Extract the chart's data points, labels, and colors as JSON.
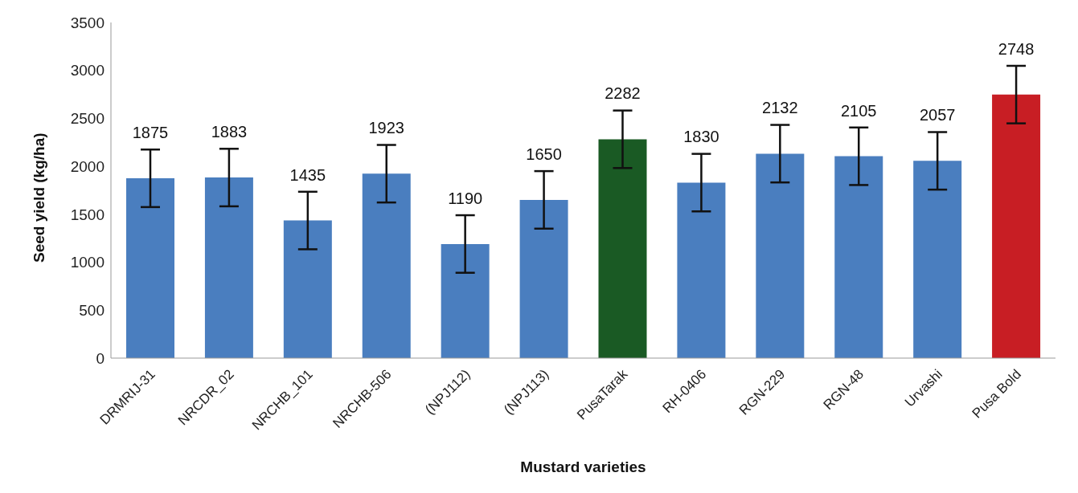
{
  "chart_data": {
    "type": "bar",
    "xlabel": "Mustard varieties",
    "ylabel": "Seed yield (kg/ha)",
    "categories": [
      "DRMRIJ-31",
      "NRCDR_02",
      "NRCHB_101",
      "NRCHB-506",
      "(NPJ112)",
      "(NPJ113)",
      "PusaTarak",
      "RH-0406",
      "RGN-229",
      "RGN-48",
      "Urvashi",
      "Pusa Bold"
    ],
    "values": [
      1875,
      1883,
      1435,
      1923,
      1190,
      1650,
      2282,
      1830,
      2132,
      2105,
      2057,
      2748
    ],
    "colors": [
      "#4a7ebf",
      "#4a7ebf",
      "#4a7ebf",
      "#4a7ebf",
      "#4a7ebf",
      "#4a7ebf",
      "#1a5a24",
      "#4a7ebf",
      "#4a7ebf",
      "#4a7ebf",
      "#4a7ebf",
      "#c81e24"
    ],
    "errors": [
      300,
      300,
      300,
      300,
      300,
      300,
      300,
      300,
      300,
      300,
      300,
      300
    ],
    "data_labels": true,
    "ylim": [
      0,
      3500
    ],
    "yticks": [
      0,
      500,
      1000,
      1500,
      2000,
      2500,
      3000,
      3500
    ],
    "grid": false,
    "legend": false
  }
}
